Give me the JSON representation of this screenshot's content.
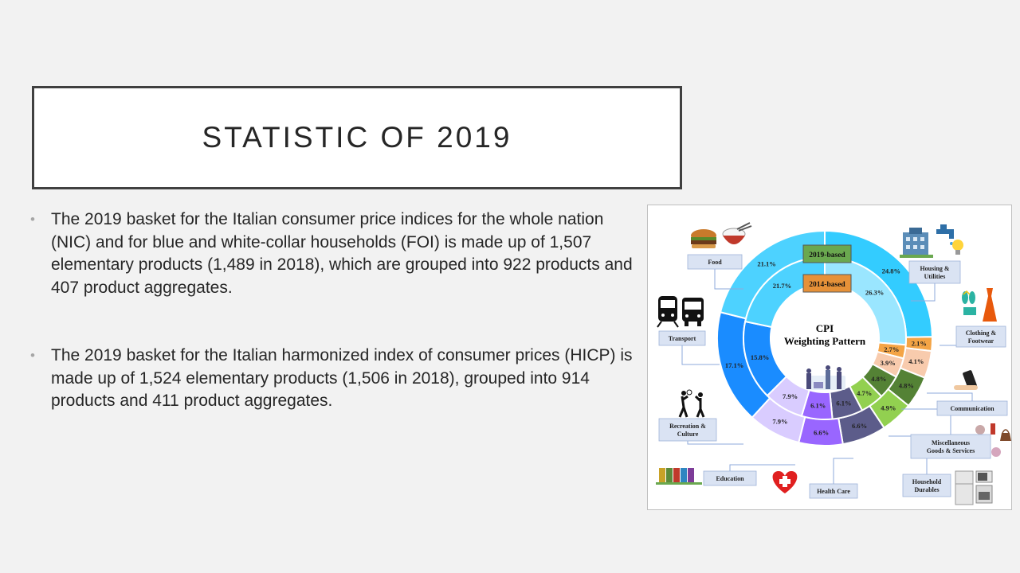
{
  "slide": {
    "title": "STATISTIC OF 2019",
    "bullets": [
      "The 2019 basket for the Italian consumer price indices for the whole nation (NIC) and for blue and white-collar households (FOI) is made up of 1,507 elementary products (1,489 in 2018), which are grouped into 922 products and 407 product aggregates.",
      "The 2019 basket for the Italian harmonized index of consumer prices (HICP) is made up of 1,524 elementary products (1,506 in 2018), grouped into 914 products and 411 product aggregates."
    ]
  },
  "chart_data": {
    "type": "pie",
    "title": "CPI Weighting Pattern",
    "subtitle_lines": [
      "CPI",
      "Weighting Pattern"
    ],
    "rings": [
      {
        "name": "2019-based",
        "color": "#6aa84f"
      },
      {
        "name": "2014-based",
        "color": "#e69138"
      }
    ],
    "categories": [
      {
        "label": "Housing & Utilities",
        "lines": [
          "Housing &",
          "Utilities"
        ],
        "outer": 24.8,
        "inner": 26.3,
        "outer_color": "#33ccff",
        "inner_color": "#9ae6ff"
      },
      {
        "label": "Clothing & Footwear",
        "lines": [
          "Clothing &",
          "Footwear"
        ],
        "outer": 2.1,
        "inner": 2.7,
        "outer_color": "#f4a445",
        "inner_color": "#f4a445"
      },
      {
        "label": "Communication",
        "lines": [
          "Communication"
        ],
        "outer": 4.1,
        "inner": 3.9,
        "outer_color": "#f8cbad",
        "inner_color": "#f8cbad"
      },
      {
        "label": "Miscellaneous Goods & Services",
        "lines": [
          "Miscellaneous",
          "Goods & Services"
        ],
        "outer": 4.8,
        "inner": 4.8,
        "outer_color": "#548235",
        "inner_color": "#548235"
      },
      {
        "label": "Household Durables",
        "lines": [
          "Household",
          "Durables"
        ],
        "outer": 4.9,
        "inner": 4.7,
        "outer_color": "#92d050",
        "inner_color": "#92d050"
      },
      {
        "label": "Health Care",
        "lines": [
          "Health Care"
        ],
        "outer": 6.6,
        "inner": 6.1,
        "outer_color": "#5c5c8a",
        "inner_color": "#5c5c8a"
      },
      {
        "label": "Education",
        "lines": [
          "Education"
        ],
        "outer": 6.6,
        "inner": 6.1,
        "outer_color": "#9966ff",
        "inner_color": "#9966ff"
      },
      {
        "label": "Recreation & Culture",
        "lines": [
          "Recreation &",
          "Culture"
        ],
        "outer": 7.9,
        "inner": 7.9,
        "outer_color": "#d9ccff",
        "inner_color": "#d9ccff"
      },
      {
        "label": "Transport",
        "lines": [
          "Transport"
        ],
        "outer": 17.1,
        "inner": 15.8,
        "outer_color": "#1a8cff",
        "inner_color": "#1a8cff"
      },
      {
        "label": "Food",
        "lines": [
          "Food"
        ],
        "outer": 21.1,
        "inner": 21.7,
        "outer_color": "#4dd2ff",
        "inner_color": "#4dd2ff"
      }
    ],
    "value_labels": {
      "outer": [
        "24.8%",
        "2.1%",
        "4.1%",
        "4.8%",
        "4.9%",
        "6.6%",
        "6.6%",
        "7.9%",
        "17.1%",
        "21.1%"
      ],
      "inner": [
        "26.3%",
        "2.7%",
        "3.9%",
        "4.8%",
        "4.7%",
        "6.1%",
        "6.1%",
        "7.9%",
        "15.8%",
        "21.7%"
      ]
    },
    "icons": [
      "hamburger-icon",
      "rice-bowl-icon",
      "train-icon",
      "bus-icon",
      "building-icon",
      "faucet-icon",
      "lightbulb-icon",
      "sandals-icon",
      "dress-icon",
      "smartphone-icon",
      "cosmetics-icon",
      "handbag-icon",
      "fridge-icon",
      "microwave-icon",
      "heart-cross-icon",
      "books-icon",
      "tennis-players-icon",
      "shopping-family-icon"
    ]
  }
}
